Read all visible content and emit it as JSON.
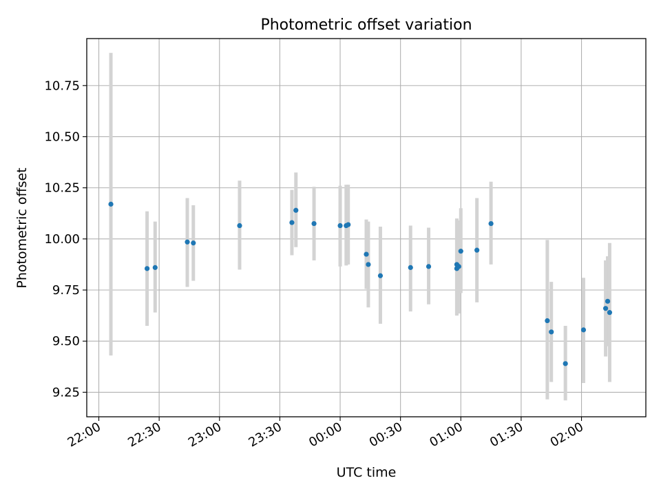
{
  "chart_data": {
    "type": "scatter",
    "title": "Photometric offset variation",
    "xlabel": "UTC time",
    "ylabel": "Photometric offset",
    "x_ticks": [
      "22:00",
      "22:30",
      "23:00",
      "23:30",
      "00:00",
      "00:30",
      "01:00",
      "01:30",
      "02:00"
    ],
    "y_ticks": [
      "9.25",
      "9.50",
      "9.75",
      "10.00",
      "10.25",
      "10.50",
      "10.75"
    ],
    "xlim": [
      "21:54",
      "02:32"
    ],
    "ylim": [
      9.13,
      10.98
    ],
    "grid": true,
    "colors": {
      "points": "#1f77b4",
      "errorbars": "#d3d3d3",
      "grid": "#b0b0b0"
    },
    "points": [
      {
        "t": "22:06",
        "y": 10.17,
        "lo": 9.43,
        "hi": 10.91
      },
      {
        "t": "22:24",
        "y": 9.855,
        "lo": 9.575,
        "hi": 10.135
      },
      {
        "t": "22:28",
        "y": 9.86,
        "lo": 9.64,
        "hi": 10.085
      },
      {
        "t": "22:44",
        "y": 9.985,
        "lo": 9.765,
        "hi": 10.2
      },
      {
        "t": "22:47",
        "y": 9.98,
        "lo": 9.795,
        "hi": 10.165
      },
      {
        "t": "23:10",
        "y": 10.065,
        "lo": 9.85,
        "hi": 10.285
      },
      {
        "t": "23:36",
        "y": 10.08,
        "lo": 9.92,
        "hi": 10.24
      },
      {
        "t": "23:38",
        "y": 10.14,
        "lo": 9.96,
        "hi": 10.325
      },
      {
        "t": "23:47",
        "y": 10.075,
        "lo": 9.895,
        "hi": 10.255
      },
      {
        "t": "00:00",
        "y": 10.065,
        "lo": 9.865,
        "hi": 10.26
      },
      {
        "t": "00:03",
        "y": 10.065,
        "lo": 9.87,
        "hi": 10.265
      },
      {
        "t": "00:04",
        "y": 10.07,
        "lo": 9.875,
        "hi": 10.265
      },
      {
        "t": "00:13",
        "y": 9.925,
        "lo": 9.755,
        "hi": 10.095
      },
      {
        "t": "00:14",
        "y": 9.875,
        "lo": 9.665,
        "hi": 10.085
      },
      {
        "t": "00:20",
        "y": 9.82,
        "lo": 9.585,
        "hi": 10.06
      },
      {
        "t": "00:35",
        "y": 9.86,
        "lo": 9.645,
        "hi": 10.065
      },
      {
        "t": "00:44",
        "y": 9.865,
        "lo": 9.68,
        "hi": 10.055
      },
      {
        "t": "00:58",
        "y": 9.875,
        "lo": 9.625,
        "hi": 10.095
      },
      {
        "t": "00:58",
        "y": 9.855,
        "lo": 9.63,
        "hi": 10.1
      },
      {
        "t": "00:59",
        "y": 9.865,
        "lo": 9.635,
        "hi": 10.09
      },
      {
        "t": "01:00",
        "y": 9.94,
        "lo": 9.735,
        "hi": 10.15
      },
      {
        "t": "01:08",
        "y": 9.945,
        "lo": 9.69,
        "hi": 10.2
      },
      {
        "t": "01:15",
        "y": 10.075,
        "lo": 9.875,
        "hi": 10.28
      },
      {
        "t": "01:43",
        "y": 9.6,
        "lo": 9.215,
        "hi": 9.995
      },
      {
        "t": "01:45",
        "y": 9.545,
        "lo": 9.3,
        "hi": 9.79
      },
      {
        "t": "01:52",
        "y": 9.39,
        "lo": 9.21,
        "hi": 9.575
      },
      {
        "t": "02:01",
        "y": 9.555,
        "lo": 9.295,
        "hi": 9.81
      },
      {
        "t": "02:12",
        "y": 9.66,
        "lo": 9.425,
        "hi": 9.895
      },
      {
        "t": "02:13",
        "y": 9.695,
        "lo": 9.475,
        "hi": 9.915
      },
      {
        "t": "02:14",
        "y": 9.64,
        "lo": 9.3,
        "hi": 9.98
      }
    ]
  }
}
